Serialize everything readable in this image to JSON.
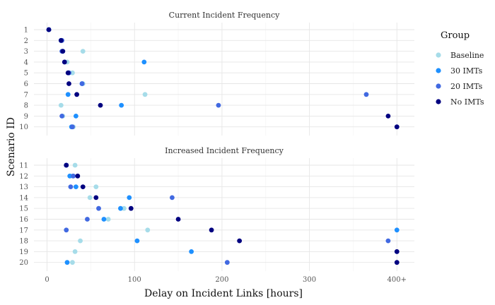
{
  "chart_data": {
    "type": "scatter",
    "xlabel": "Delay on Incident Links [hours]",
    "ylabel": "Scenario ID",
    "xlim": [
      -15,
      420
    ],
    "x_ticks": [
      {
        "value": 0,
        "label": "0"
      },
      {
        "value": 100,
        "label": "100"
      },
      {
        "value": 200,
        "label": "200"
      },
      {
        "value": 300,
        "label": "300"
      },
      {
        "value": 400,
        "label": "400+"
      }
    ],
    "grid": true,
    "legend": {
      "title": "Group",
      "placement": "right",
      "entries": [
        {
          "name": "Baseline",
          "color": "#A6DCE9"
        },
        {
          "name": "30 IMTs",
          "color": "#1E90FF"
        },
        {
          "name": "20 IMTs",
          "color": "#4169E1"
        },
        {
          "name": "No IMTs",
          "color": "#000080"
        }
      ]
    },
    "panels": [
      {
        "title": "Current Incident Frequency",
        "scenarios": [
          "1",
          "2",
          "3",
          "4",
          "5",
          "6",
          "7",
          "8",
          "9",
          "10"
        ],
        "series": [
          {
            "name": "Baseline",
            "values": [
              2,
              16,
              41,
              23,
              29,
              41,
              112,
              16,
              18,
              30
            ]
          },
          {
            "name": "30 IMTs",
            "values": [
              2,
              16,
              18,
              111,
              25,
              40,
              24,
              85,
              33,
              28
            ]
          },
          {
            "name": "20 IMTs",
            "values": [
              2,
              17,
              17,
              20,
              25,
              40,
              365,
              196,
              17,
              29
            ]
          },
          {
            "name": "No IMTs",
            "values": [
              2,
              16,
              18,
              20,
              24,
              25,
              34,
              61,
              390,
              400
            ]
          }
        ]
      },
      {
        "title": "Increased Incident Frequency",
        "scenarios": [
          "11",
          "12",
          "13",
          "14",
          "15",
          "16",
          "17",
          "18",
          "19",
          "20"
        ],
        "series": [
          {
            "name": "Baseline",
            "values": [
              32,
              29,
              56,
              49,
              88,
              70,
              115,
              38,
              32,
              29
            ]
          },
          {
            "name": "30 IMTs",
            "values": [
              22,
              26,
              33,
              94,
              84,
              65,
              400,
              103,
              165,
              23
            ]
          },
          {
            "name": "20 IMTs",
            "values": [
              22,
              30,
              27,
              143,
              59,
              46,
              22,
              390,
              400,
              206
            ]
          },
          {
            "name": "No IMTs",
            "values": [
              22,
              35,
              41,
              56,
              96,
              150,
              188,
              220,
              400,
              400
            ]
          }
        ]
      }
    ]
  }
}
